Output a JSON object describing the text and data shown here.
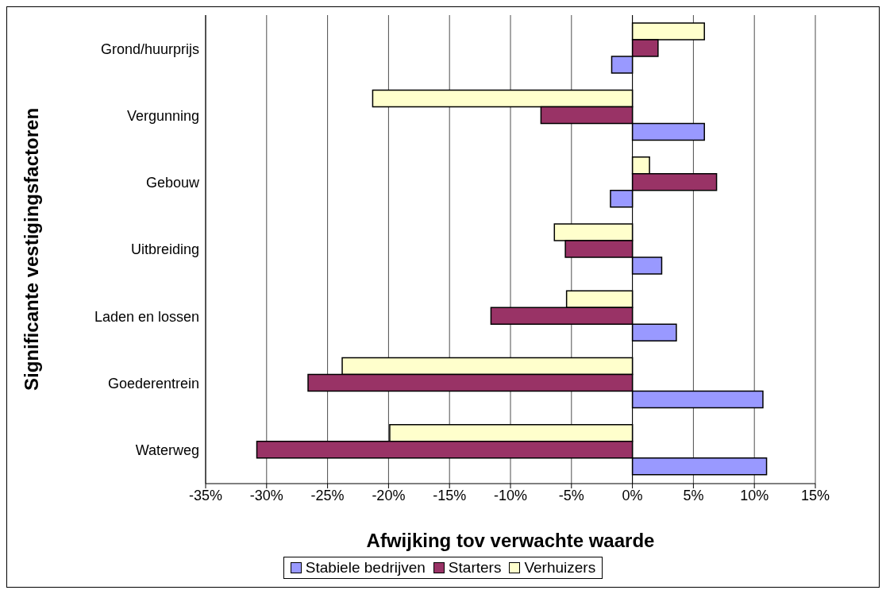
{
  "chart_data": {
    "type": "bar",
    "orientation": "horizontal",
    "xlabel": "Afwijking tov verwachte waarde",
    "ylabel": "Significante vestigingsfactoren",
    "categories": [
      "Grond/huurprijs",
      "Vergunning",
      "Gebouw",
      "Uitbreiding",
      "Laden en lossen",
      "Goederentrein",
      "Waterweg"
    ],
    "series": [
      {
        "name": "Stabiele bedrijven",
        "color": "#9999ff",
        "values": [
          -1.7,
          5.9,
          -1.8,
          2.4,
          3.6,
          10.7,
          11.0
        ]
      },
      {
        "name": "Starters",
        "color": "#993366",
        "values": [
          2.1,
          -7.5,
          6.9,
          -5.5,
          -11.6,
          -26.6,
          -30.8
        ]
      },
      {
        "name": "Verhuizers",
        "color": "#ffffcc",
        "values": [
          5.9,
          -21.3,
          1.4,
          -6.4,
          -5.4,
          -23.8,
          -19.9
        ]
      }
    ],
    "xlim": [
      -35,
      15
    ],
    "xticks": [
      {
        "value": -35,
        "label": "-35%"
      },
      {
        "value": -30,
        "label": "-30%"
      },
      {
        "value": -25,
        "label": "-25%"
      },
      {
        "value": -20,
        "label": "-20%"
      },
      {
        "value": -15,
        "label": "-15%"
      },
      {
        "value": -10,
        "label": "-10%"
      },
      {
        "value": -5,
        "label": "-5%"
      },
      {
        "value": 0,
        "label": "0%"
      },
      {
        "value": 5,
        "label": "5%"
      },
      {
        "value": 10,
        "label": "10%"
      },
      {
        "value": 15,
        "label": "15%"
      }
    ],
    "grid": "x",
    "legend": "bottom"
  }
}
